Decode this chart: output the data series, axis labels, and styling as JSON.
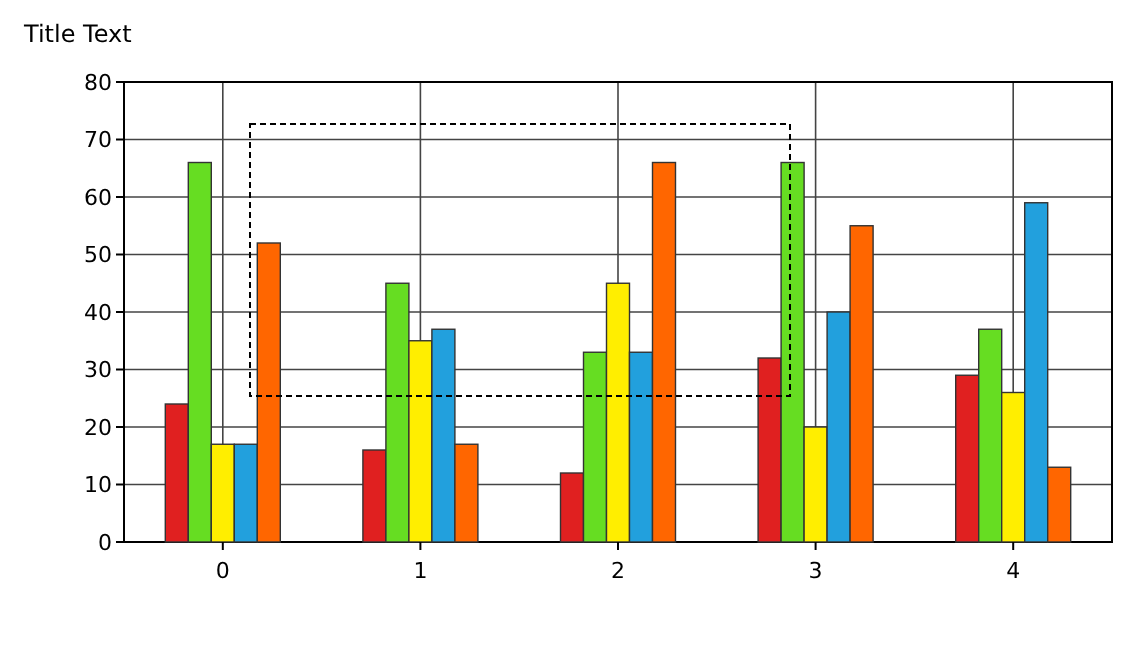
{
  "chart_data": {
    "type": "bar",
    "title": "Title Text",
    "categories": [
      "0",
      "1",
      "2",
      "3",
      "4"
    ],
    "series": [
      {
        "color": "#e02020",
        "values": [
          24,
          16,
          12,
          32,
          29
        ]
      },
      {
        "color": "#66dd22",
        "values": [
          66,
          45,
          33,
          66,
          37
        ]
      },
      {
        "color": "#ffee00",
        "values": [
          17,
          35,
          45,
          20,
          26
        ]
      },
      {
        "color": "#22a0dd",
        "values": [
          17,
          37,
          33,
          40,
          59
        ]
      },
      {
        "color": "#ff6600",
        "values": [
          52,
          17,
          66,
          55,
          13
        ]
      }
    ],
    "ylim": [
      0,
      80
    ],
    "yticks": [
      0,
      10,
      20,
      30,
      40,
      50,
      60,
      70,
      80
    ],
    "grid": true
  }
}
